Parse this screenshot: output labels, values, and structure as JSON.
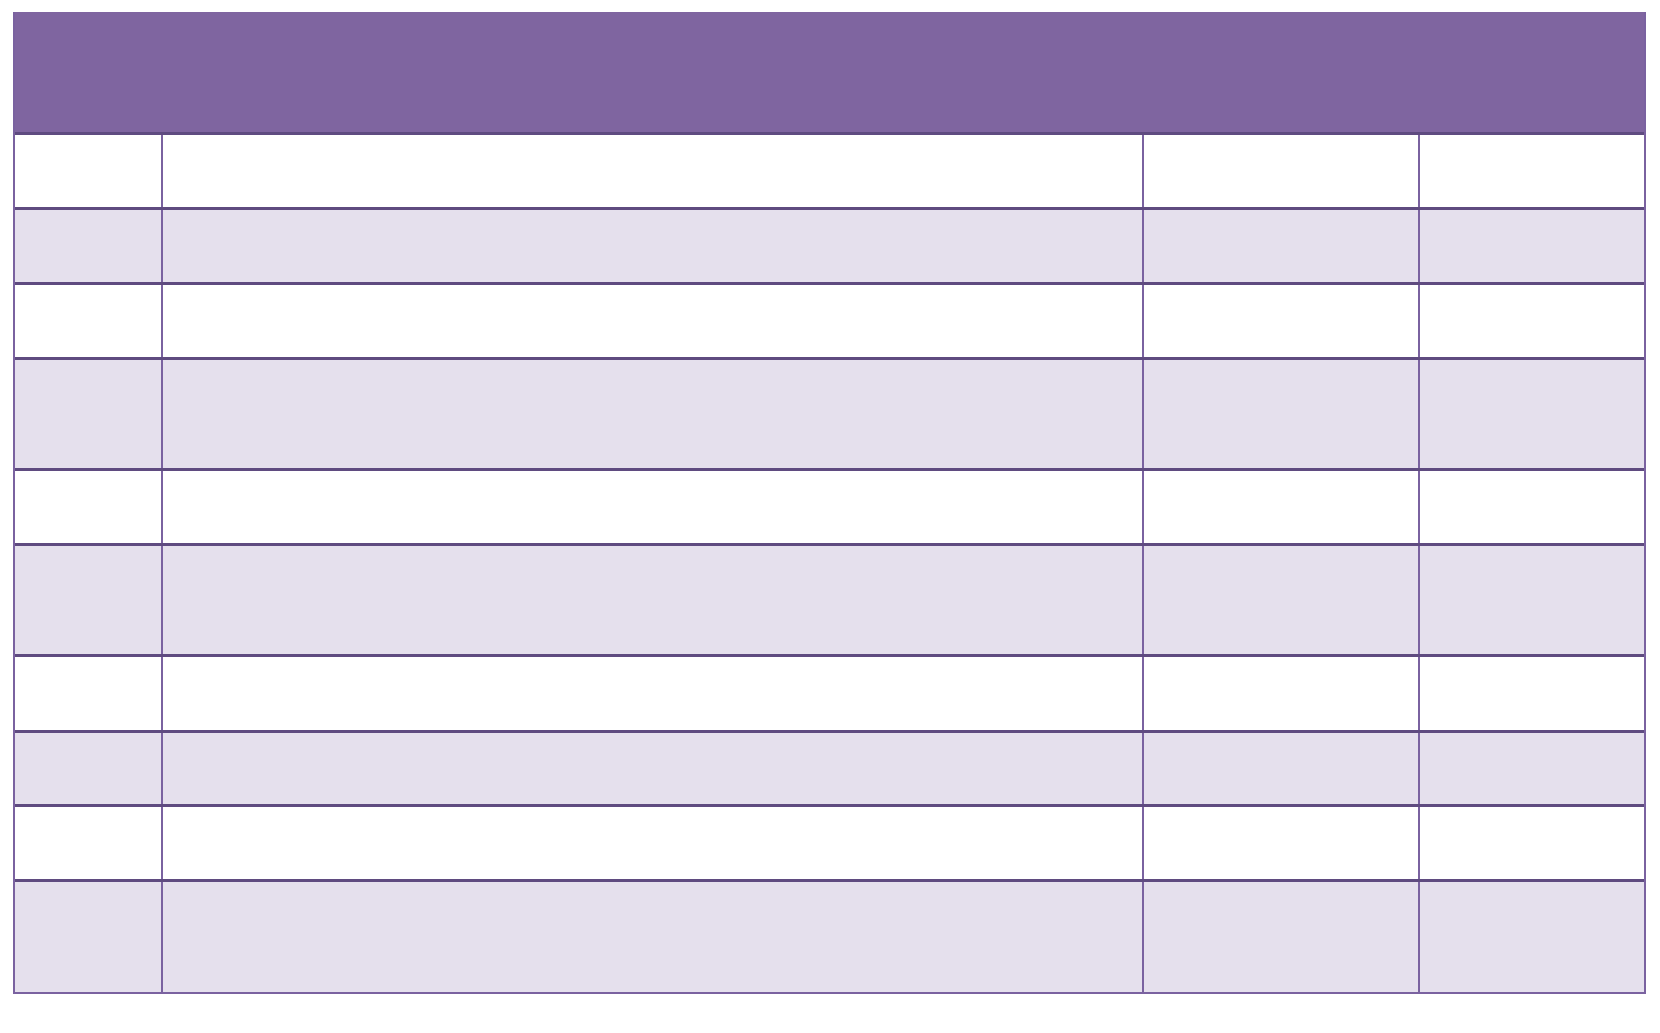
{
  "colors": {
    "header": "#7f65a0",
    "stripe": "#e5e0ed",
    "border": "#5f4b80"
  },
  "table": {
    "header": "",
    "rows": [
      [
        "",
        "",
        "",
        ""
      ],
      [
        "",
        "",
        "",
        ""
      ],
      [
        "",
        "",
        "",
        ""
      ],
      [
        "",
        "",
        "",
        ""
      ],
      [
        "",
        "",
        "",
        ""
      ],
      [
        "",
        "",
        "",
        ""
      ],
      [
        "",
        "",
        "",
        ""
      ],
      [
        "",
        "",
        "",
        ""
      ],
      [
        "",
        "",
        "",
        ""
      ],
      [
        "",
        "",
        "",
        ""
      ]
    ]
  }
}
